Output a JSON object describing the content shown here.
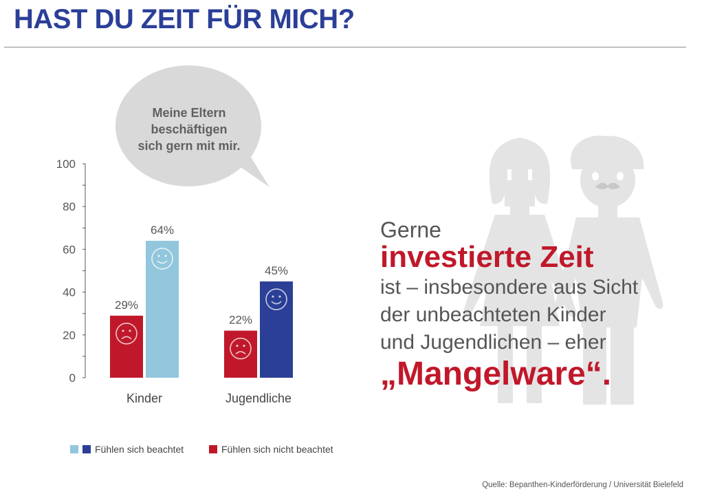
{
  "header": {
    "title": "HAST DU ZEIT FÜR MICH?"
  },
  "bubble": {
    "lines": [
      "Meine Eltern",
      "beschäftigen",
      "sich gern mit mir."
    ]
  },
  "statement": {
    "intro": "Gerne",
    "highlight": "investierte Zeit",
    "body": [
      "ist – insbesondere aus Sicht",
      "der unbeachteten Kinder",
      "und Jugendlichen – eher"
    ],
    "ending": "„Mangelware“."
  },
  "legend": {
    "beachtet_label": "Fühlen sich beachtet",
    "nicht_beachtet_label": "Fühlen sich nicht beachtet"
  },
  "source": "Quelle: Bepanthen-Kinderförderung / Universität Bielefeld",
  "colors": {
    "title_blue": "#2b3f97",
    "red": "#c0182a",
    "light_blue": "#92c6dc",
    "dark_blue": "#2b3f97",
    "silhouette_grey": "#e4e4e4",
    "bubble_grey": "#d9d9d9"
  },
  "chart_data": {
    "type": "bar",
    "categories": [
      "Kinder",
      "Jugendliche"
    ],
    "ylim": [
      0,
      100
    ],
    "yticks": [
      0,
      20,
      40,
      60,
      80,
      100
    ],
    "series": [
      {
        "name": "Fühlen sich nicht beachtet",
        "values": [
          29,
          22
        ],
        "labels": [
          "29%",
          "22%"
        ],
        "icon": "sad-face-icon",
        "colors": [
          "#c0182a",
          "#c0182a"
        ]
      },
      {
        "name": "Fühlen sich beachtet",
        "values": [
          64,
          45
        ],
        "labels": [
          "64%",
          "45%"
        ],
        "icon": "happy-face-icon",
        "colors": [
          "#92c6dc",
          "#2b3f97"
        ]
      }
    ],
    "grid": false,
    "legend_position": "bottom-left"
  }
}
